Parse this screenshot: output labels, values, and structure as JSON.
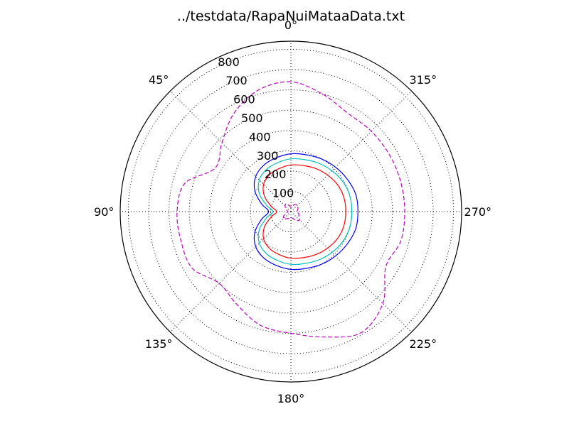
{
  "chart_data": {
    "type": "polar-line",
    "title": "../testdata/RapaNuiMataaData.txt",
    "theta_zero": "top",
    "theta_direction": "counterclockwise",
    "theta_ticks": [
      {
        "angle": 0,
        "label": "0°"
      },
      {
        "angle": 45,
        "label": "45°"
      },
      {
        "angle": 90,
        "label": "90°"
      },
      {
        "angle": 135,
        "label": "135°"
      },
      {
        "angle": 180,
        "label": "180°"
      },
      {
        "angle": 225,
        "label": "225°"
      },
      {
        "angle": 270,
        "label": "270°"
      },
      {
        "angle": 315,
        "label": "315°"
      }
    ],
    "r_ticks": [
      {
        "value": 100,
        "label": "100"
      },
      {
        "value": 200,
        "label": "200"
      },
      {
        "value": 300,
        "label": "300"
      },
      {
        "value": 400,
        "label": "400"
      },
      {
        "value": 500,
        "label": "500"
      },
      {
        "value": 600,
        "label": "600"
      },
      {
        "value": 700,
        "label": "700"
      },
      {
        "value": 800,
        "label": "800"
      }
    ],
    "rlim": [
      0,
      840
    ],
    "grid": true,
    "theta": [
      0,
      15,
      30,
      45,
      60,
      75,
      90,
      105,
      120,
      135,
      150,
      165,
      180,
      195,
      210,
      225,
      240,
      255,
      270,
      285,
      300,
      315,
      330,
      345
    ],
    "series": [
      {
        "color": "#ff0000",
        "dash": "solid",
        "values": [
          230,
          220,
          210,
          190,
          150,
          100,
          70,
          100,
          150,
          190,
          210,
          220,
          230,
          235,
          245,
          255,
          265,
          270,
          270,
          270,
          265,
          255,
          245,
          235
        ]
      },
      {
        "color": "#00bfbf",
        "dash": "solid",
        "values": [
          260,
          250,
          240,
          220,
          180,
          125,
          90,
          125,
          180,
          220,
          240,
          250,
          260,
          265,
          275,
          285,
          295,
          300,
          300,
          300,
          295,
          285,
          275,
          265
        ]
      },
      {
        "color": "#0000ff",
        "dash": "solid",
        "values": [
          285,
          275,
          265,
          245,
          205,
          150,
          110,
          150,
          205,
          245,
          265,
          275,
          285,
          290,
          300,
          310,
          320,
          330,
          330,
          330,
          320,
          310,
          300,
          290
        ]
      },
      {
        "color": "#bf00bf",
        "dash": "dashed",
        "values": [
          640,
          620,
          560,
          480,
          430,
          540,
          560,
          560,
          560,
          500,
          530,
          580,
          600,
          640,
          690,
          640,
          540,
          560,
          560,
          560,
          560,
          560,
          560,
          600
        ]
      },
      {
        "color": "#bf00bf",
        "dash": "dashed",
        "values": [
          20,
          30,
          45,
          40,
          30,
          20,
          15,
          20,
          40,
          50,
          40,
          35,
          30,
          35,
          50,
          60,
          45,
          40,
          30,
          35,
          40,
          45,
          40,
          30
        ]
      }
    ]
  }
}
